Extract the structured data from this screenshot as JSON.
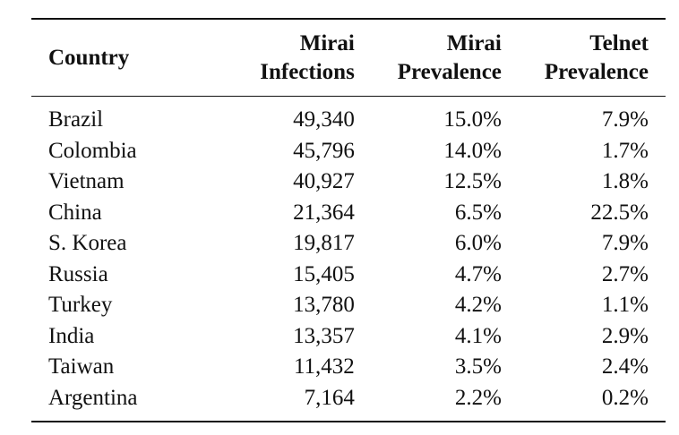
{
  "table": {
    "headers": [
      {
        "lines": [
          "Country"
        ]
      },
      {
        "lines": [
          "Mirai",
          "Infections"
        ]
      },
      {
        "lines": [
          "Mirai",
          "Prevalence"
        ]
      },
      {
        "lines": [
          "Telnet",
          "Prevalence"
        ]
      }
    ],
    "rows": [
      [
        "Brazil",
        "49,340",
        "15.0%",
        "7.9%"
      ],
      [
        "Colombia",
        "45,796",
        "14.0%",
        "1.7%"
      ],
      [
        "Vietnam",
        "40,927",
        "12.5%",
        "1.8%"
      ],
      [
        "China",
        "21,364",
        "6.5%",
        "22.5%"
      ],
      [
        "S. Korea",
        "19,817",
        "6.0%",
        "7.9%"
      ],
      [
        "Russia",
        "15,405",
        "4.7%",
        "2.7%"
      ],
      [
        "Turkey",
        "13,780",
        "4.2%",
        "1.1%"
      ],
      [
        "India",
        "13,357",
        "4.1%",
        "2.9%"
      ],
      [
        "Taiwan",
        "11,432",
        "3.5%",
        "2.4%"
      ],
      [
        "Argentina",
        "7,164",
        "2.2%",
        "0.2%"
      ]
    ]
  }
}
